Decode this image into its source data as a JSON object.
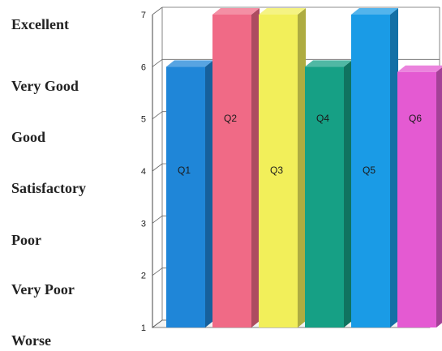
{
  "rating_labels": [
    "Excellent",
    "Very Good",
    "Good",
    "Satisfactory",
    "Poor",
    "Very Poor",
    "Worse"
  ],
  "chart_data": {
    "type": "bar",
    "categories": [
      "Q1",
      "Q2",
      "Q3",
      "Q4",
      "Q5",
      "Q6"
    ],
    "values": [
      6,
      7,
      7,
      6,
      7,
      5.9
    ],
    "ylim": [
      1,
      7
    ],
    "yticks": [
      "1",
      "2",
      "3",
      "4",
      "5",
      "6",
      "7"
    ],
    "colors": [
      "#1f86d8",
      "#f06a86",
      "#f2ef5a",
      "#16a085",
      "#1a9be6",
      "#e45ad2"
    ],
    "grid": true,
    "legend": "none",
    "style": "3d"
  }
}
